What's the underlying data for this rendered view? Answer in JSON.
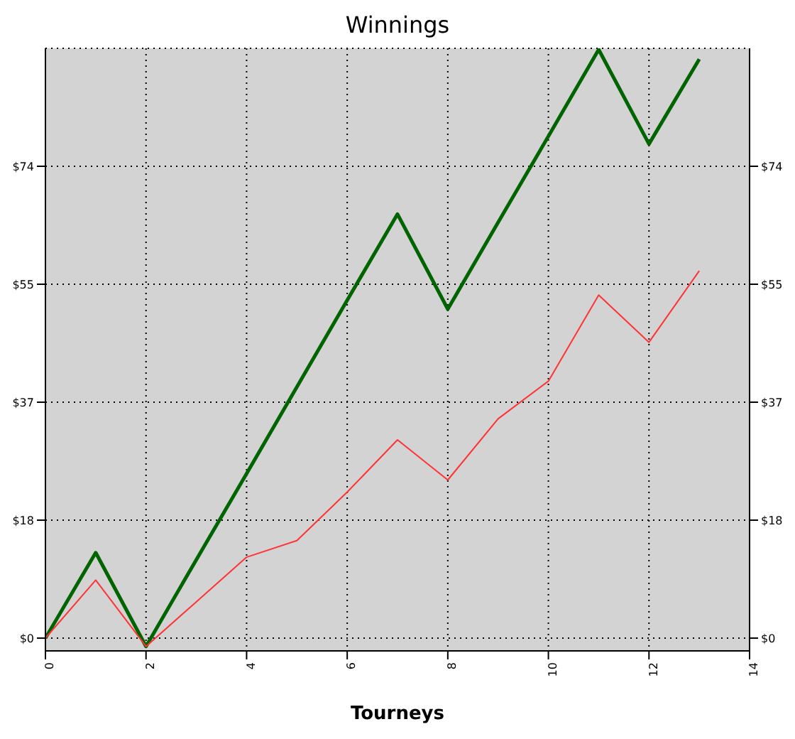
{
  "chart_data": {
    "type": "line",
    "title": "Winnings",
    "xlabel": "Tourneys",
    "x": [
      0,
      1,
      2,
      3,
      4,
      5,
      6,
      7,
      8,
      9,
      10,
      11,
      12,
      13
    ],
    "series": [
      {
        "color": "#006400",
        "values": [
          0,
          13.4,
          -1.3,
          12.3,
          25.8,
          39.4,
          53,
          66.5,
          51.6,
          65.2,
          78.7,
          92.3,
          77.5,
          90.8
        ]
      },
      {
        "color": "#ff3333",
        "values": [
          0,
          9.1,
          -1.3,
          5.7,
          12.7,
          15.3,
          22.9,
          31.1,
          24.8,
          34.4,
          40.3,
          53.8,
          46.4,
          57.6
        ]
      }
    ],
    "xlim": [
      0,
      14
    ],
    "xticks": [
      0,
      2,
      4,
      6,
      8,
      10,
      12,
      14
    ],
    "ylim": [
      -2,
      92.5
    ],
    "yticks": [
      {
        "value": 0,
        "label": "$0"
      },
      {
        "value": 18.5,
        "label": "$18"
      },
      {
        "value": 37,
        "label": "$37"
      },
      {
        "value": 55.5,
        "label": "$55"
      },
      {
        "value": 74,
        "label": "$74"
      }
    ],
    "y2lim": [
      -2,
      92.5
    ],
    "y2ticks": [
      {
        "value": 0,
        "label": "$0"
      },
      {
        "value": 18.5,
        "label": "$18"
      },
      {
        "value": 37,
        "label": "$37"
      },
      {
        "value": 55.5,
        "label": "$55"
      },
      {
        "value": 74,
        "label": "$74"
      }
    ],
    "grid": true,
    "legend": false,
    "marker": "none",
    "line_style": "solid"
  }
}
